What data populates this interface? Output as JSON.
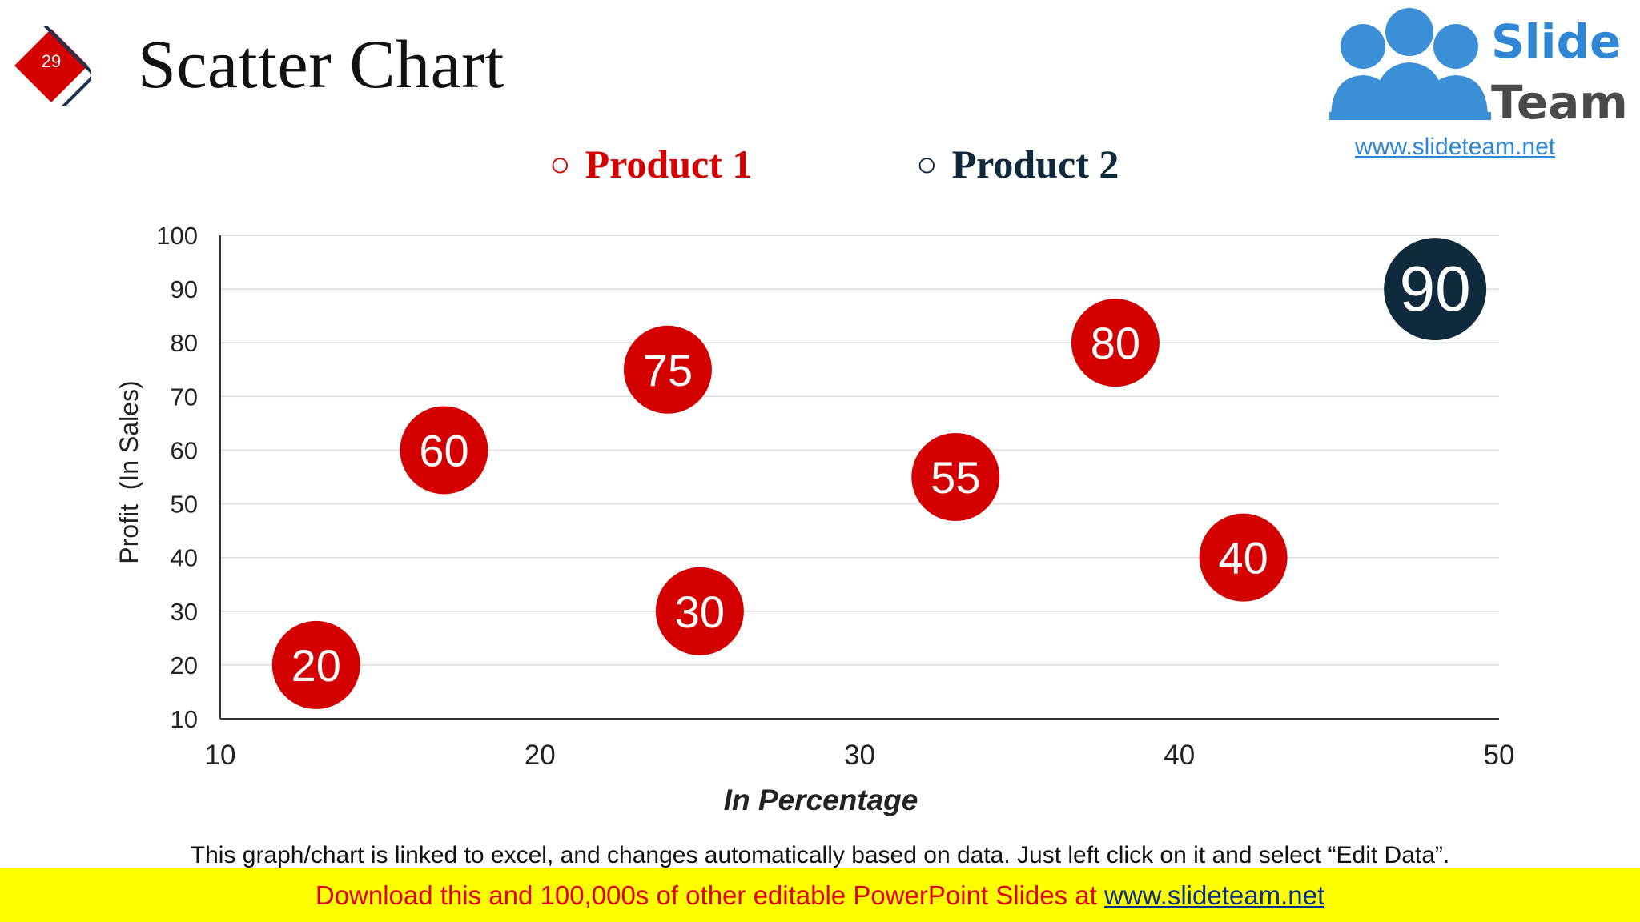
{
  "slide": {
    "number": "29",
    "title": "Scatter Chart"
  },
  "logo": {
    "line1": "Slide",
    "line2": "Team",
    "url": "www.slideteam.net"
  },
  "colors": {
    "product1": "#d40000",
    "product2": "#0f2a3d",
    "badge": "#d40000",
    "banner": "#ffff00"
  },
  "chart_data": {
    "type": "scatter",
    "xlabel": "In Percentage",
    "ylabel": "Profit  (In Sales)",
    "xlim": [
      10,
      50
    ],
    "ylim": [
      10,
      100
    ],
    "x_ticks": [
      "10",
      "20",
      "30",
      "40",
      "50"
    ],
    "y_ticks": [
      "10",
      "20",
      "30",
      "40",
      "50",
      "60",
      "70",
      "80",
      "90",
      "100"
    ],
    "grid": true,
    "legend_position": "top",
    "series": [
      {
        "name": "Product 1",
        "points": [
          {
            "x": 13,
            "y": 20,
            "label": "20"
          },
          {
            "x": 17,
            "y": 60,
            "label": "60"
          },
          {
            "x": 24,
            "y": 75,
            "label": "75"
          },
          {
            "x": 25,
            "y": 30,
            "label": "30"
          },
          {
            "x": 33,
            "y": 55,
            "label": "55"
          },
          {
            "x": 38,
            "y": 80,
            "label": "80"
          },
          {
            "x": 42,
            "y": 40,
            "label": "40"
          }
        ]
      },
      {
        "name": "Product 2",
        "points": [
          {
            "x": 48,
            "y": 90,
            "label": "90"
          }
        ]
      }
    ]
  },
  "footnote": "This graph/chart is linked to excel, and changes automatically based on data. Just left click on it and select “Edit Data”.",
  "banner": {
    "text": "Download this and 100,000s of other editable PowerPoint Slides at ",
    "link": "www.slideteam.net"
  }
}
